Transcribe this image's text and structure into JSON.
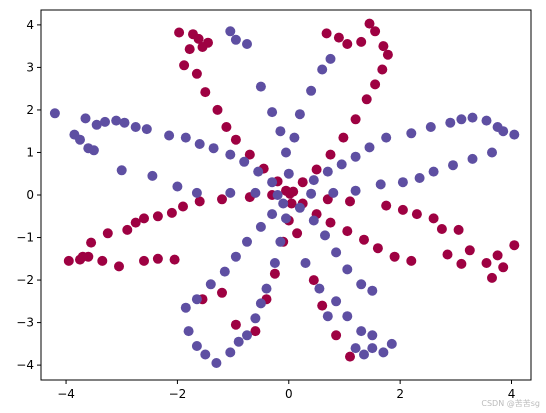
{
  "watermark": "CSDN @苦苦sg",
  "chart_data": {
    "type": "scatter",
    "title": "",
    "xlabel": "",
    "ylabel": "",
    "xlim": [
      -4.45,
      4.35
    ],
    "ylim": [
      -4.35,
      4.35
    ],
    "xticks": [
      -4,
      -2,
      0,
      2,
      4
    ],
    "yticks": [
      -4,
      -3,
      -2,
      -1,
      0,
      1,
      2,
      3,
      4
    ],
    "grid": false,
    "legend": "none",
    "series": [
      {
        "color": "#9e0142",
        "points": [
          [
            -1.97,
            3.82
          ],
          [
            -1.72,
            3.78
          ],
          [
            -1.62,
            3.67
          ],
          [
            -1.45,
            3.58
          ],
          [
            -1.55,
            3.48
          ],
          [
            -1.78,
            3.43
          ],
          [
            -1.88,
            3.05
          ],
          [
            -1.65,
            2.85
          ],
          [
            -1.5,
            2.42
          ],
          [
            -1.28,
            2.0
          ],
          [
            -1.12,
            1.6
          ],
          [
            -0.95,
            1.3
          ],
          [
            -0.7,
            0.95
          ],
          [
            -0.45,
            0.62
          ],
          [
            -0.2,
            0.32
          ],
          [
            -0.05,
            0.1
          ],
          [
            0.02,
            0.03
          ],
          [
            0.68,
            3.8
          ],
          [
            0.9,
            3.7
          ],
          [
            1.05,
            3.55
          ],
          [
            1.3,
            3.6
          ],
          [
            1.45,
            4.03
          ],
          [
            1.55,
            3.85
          ],
          [
            1.7,
            3.5
          ],
          [
            1.78,
            3.3
          ],
          [
            1.68,
            2.95
          ],
          [
            1.55,
            2.6
          ],
          [
            1.4,
            2.25
          ],
          [
            1.2,
            1.78
          ],
          [
            0.98,
            1.35
          ],
          [
            0.75,
            0.95
          ],
          [
            0.5,
            0.6
          ],
          [
            0.25,
            0.3
          ],
          [
            0.08,
            0.08
          ],
          [
            -3.75,
            -1.52
          ],
          [
            -3.95,
            -1.55
          ],
          [
            -3.6,
            -1.45
          ],
          [
            -3.55,
            -1.12
          ],
          [
            -3.7,
            -1.45
          ],
          [
            -3.35,
            -1.55
          ],
          [
            -3.25,
            -0.9
          ],
          [
            -3.05,
            -1.68
          ],
          [
            -2.9,
            -0.82
          ],
          [
            -2.75,
            -0.65
          ],
          [
            -2.6,
            -0.55
          ],
          [
            -2.35,
            -0.5
          ],
          [
            -2.1,
            -0.42
          ],
          [
            -1.9,
            -0.27
          ],
          [
            -2.6,
            -1.55
          ],
          [
            -2.35,
            -1.5
          ],
          [
            -2.05,
            -1.52
          ],
          [
            -1.6,
            -0.15
          ],
          [
            -1.2,
            -0.1
          ],
          [
            -0.7,
            -0.05
          ],
          [
            -0.3,
            0.0
          ],
          [
            4.05,
            -1.18
          ],
          [
            3.85,
            -1.7
          ],
          [
            3.65,
            -1.95
          ],
          [
            3.55,
            -1.6
          ],
          [
            3.75,
            -1.42
          ],
          [
            3.25,
            -1.3
          ],
          [
            3.1,
            -1.62
          ],
          [
            2.85,
            -1.4
          ],
          [
            3.05,
            -0.82
          ],
          [
            2.75,
            -0.8
          ],
          [
            2.6,
            -0.55
          ],
          [
            2.3,
            -0.45
          ],
          [
            2.05,
            -0.35
          ],
          [
            1.75,
            -0.25
          ],
          [
            2.2,
            -1.55
          ],
          [
            1.9,
            -1.45
          ],
          [
            1.6,
            -1.25
          ],
          [
            1.35,
            -1.05
          ],
          [
            1.05,
            -0.85
          ],
          [
            0.75,
            -0.65
          ],
          [
            0.5,
            -0.45
          ],
          [
            0.25,
            -0.2
          ],
          [
            1.1,
            -0.15
          ],
          [
            0.7,
            -0.1
          ],
          [
            -1.55,
            -2.45
          ],
          [
            -1.2,
            -2.3
          ],
          [
            -0.95,
            -3.05
          ],
          [
            -0.6,
            -3.2
          ],
          [
            -0.4,
            -2.45
          ],
          [
            -0.25,
            -1.85
          ],
          [
            -0.1,
            -1.1
          ],
          [
            0.0,
            -0.6
          ],
          [
            0.05,
            -0.2
          ],
          [
            0.15,
            -0.9
          ],
          [
            1.1,
            -3.8
          ],
          [
            0.85,
            -3.3
          ],
          [
            0.6,
            -2.6
          ],
          [
            0.45,
            -2.0
          ]
        ]
      },
      {
        "color": "#5e4fa2",
        "points": [
          [
            -4.2,
            1.92
          ],
          [
            -3.85,
            1.42
          ],
          [
            -3.75,
            1.3
          ],
          [
            -3.6,
            1.1
          ],
          [
            -3.5,
            1.05
          ],
          [
            -3.65,
            1.8
          ],
          [
            -3.45,
            1.65
          ],
          [
            -3.3,
            1.72
          ],
          [
            -3.1,
            1.75
          ],
          [
            -2.95,
            1.7
          ],
          [
            -2.75,
            1.6
          ],
          [
            -2.55,
            1.55
          ],
          [
            -2.15,
            1.4
          ],
          [
            -1.85,
            1.35
          ],
          [
            -1.6,
            1.2
          ],
          [
            -1.35,
            1.1
          ],
          [
            -1.05,
            0.95
          ],
          [
            -0.8,
            0.78
          ],
          [
            -0.55,
            0.55
          ],
          [
            -0.3,
            0.3
          ],
          [
            -3.0,
            0.58
          ],
          [
            -2.45,
            0.45
          ],
          [
            -2.0,
            0.2
          ],
          [
            -1.65,
            0.05
          ],
          [
            -1.05,
            0.05
          ],
          [
            -0.6,
            0.05
          ],
          [
            -0.2,
            0.0
          ],
          [
            4.05,
            1.42
          ],
          [
            3.85,
            1.5
          ],
          [
            3.75,
            1.6
          ],
          [
            3.55,
            1.75
          ],
          [
            3.3,
            1.82
          ],
          [
            3.1,
            1.78
          ],
          [
            2.9,
            1.7
          ],
          [
            2.55,
            1.6
          ],
          [
            2.2,
            1.45
          ],
          [
            1.75,
            1.35
          ],
          [
            1.45,
            1.12
          ],
          [
            1.2,
            0.9
          ],
          [
            0.95,
            0.72
          ],
          [
            0.7,
            0.55
          ],
          [
            0.45,
            0.35
          ],
          [
            3.65,
            1.0
          ],
          [
            3.3,
            0.85
          ],
          [
            2.95,
            0.7
          ],
          [
            2.6,
            0.55
          ],
          [
            2.35,
            0.4
          ],
          [
            2.05,
            0.3
          ],
          [
            1.65,
            0.25
          ],
          [
            1.2,
            0.1
          ],
          [
            0.8,
            0.05
          ],
          [
            0.4,
            0.03
          ],
          [
            -1.05,
            3.85
          ],
          [
            -0.95,
            3.65
          ],
          [
            -0.75,
            3.55
          ],
          [
            -0.5,
            2.55
          ],
          [
            -0.3,
            1.95
          ],
          [
            -0.15,
            1.5
          ],
          [
            -0.05,
            1.0
          ],
          [
            0.0,
            0.5
          ],
          [
            0.1,
            1.35
          ],
          [
            0.2,
            1.9
          ],
          [
            0.4,
            2.45
          ],
          [
            0.6,
            2.95
          ],
          [
            0.75,
            3.2
          ],
          [
            -1.8,
            -3.2
          ],
          [
            -1.65,
            -3.55
          ],
          [
            -1.5,
            -3.75
          ],
          [
            -1.3,
            -3.95
          ],
          [
            -1.05,
            -3.7
          ],
          [
            -0.9,
            -3.45
          ],
          [
            -0.75,
            -3.3
          ],
          [
            -1.85,
            -2.65
          ],
          [
            -1.65,
            -2.45
          ],
          [
            -1.4,
            -2.1
          ],
          [
            -1.15,
            -1.8
          ],
          [
            -0.95,
            -1.45
          ],
          [
            -0.75,
            -1.1
          ],
          [
            -0.5,
            -0.75
          ],
          [
            -0.3,
            -0.45
          ],
          [
            -0.1,
            -0.2
          ],
          [
            -0.6,
            -2.9
          ],
          [
            -0.5,
            -2.55
          ],
          [
            -0.4,
            -2.2
          ],
          [
            -0.25,
            -1.6
          ],
          [
            -0.15,
            -1.1
          ],
          [
            -0.05,
            -0.55
          ],
          [
            1.2,
            -3.6
          ],
          [
            1.35,
            -3.75
          ],
          [
            1.5,
            -3.6
          ],
          [
            1.7,
            -3.7
          ],
          [
            1.85,
            -3.5
          ],
          [
            1.5,
            -3.3
          ],
          [
            1.3,
            -3.2
          ],
          [
            1.05,
            -2.85
          ],
          [
            0.85,
            -2.5
          ],
          [
            1.5,
            -2.25
          ],
          [
            1.3,
            -2.1
          ],
          [
            1.05,
            -1.75
          ],
          [
            0.85,
            -1.35
          ],
          [
            0.65,
            -0.95
          ],
          [
            0.45,
            -0.6
          ],
          [
            0.2,
            -0.3
          ],
          [
            0.3,
            -1.6
          ],
          [
            0.55,
            -2.2
          ],
          [
            0.7,
            -2.85
          ]
        ]
      }
    ]
  }
}
